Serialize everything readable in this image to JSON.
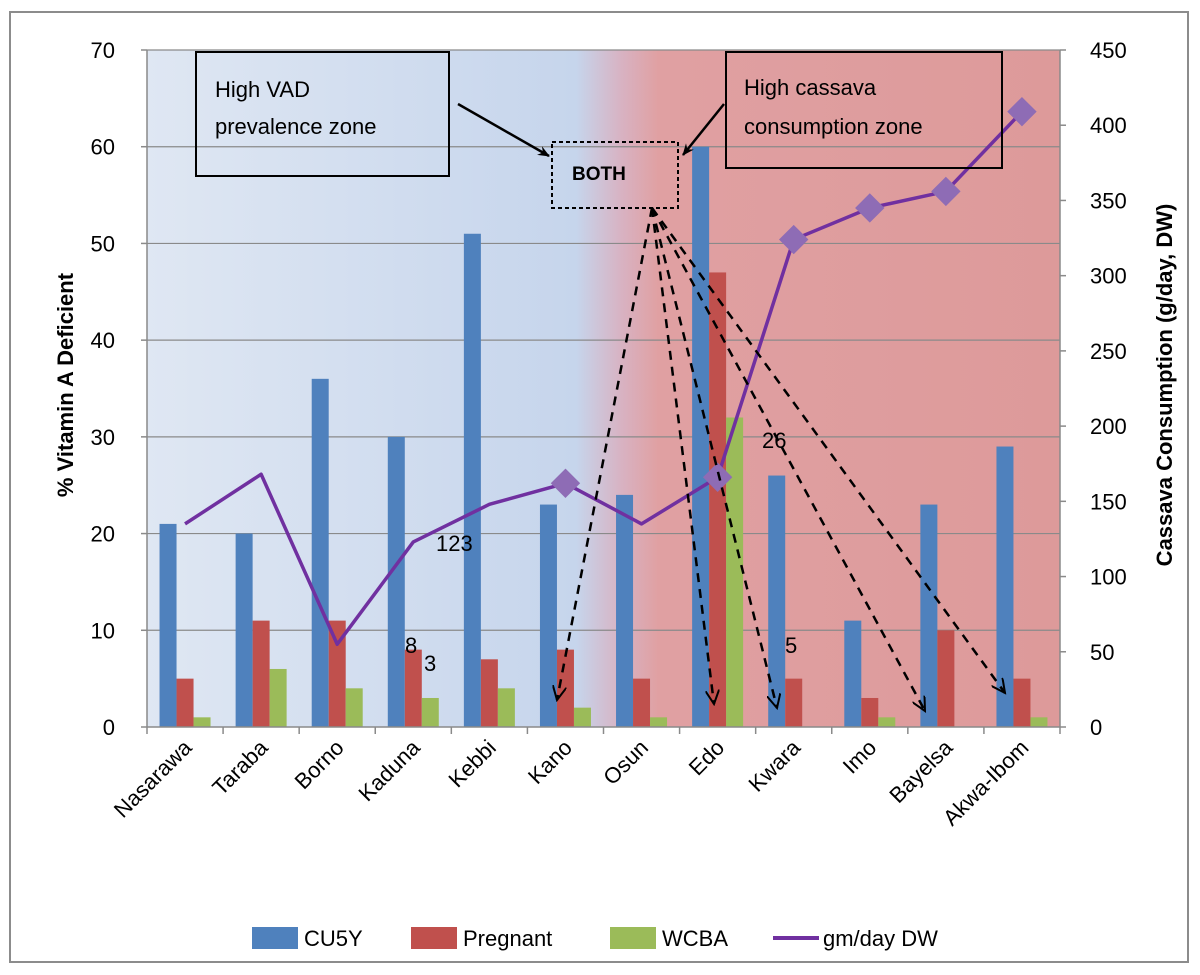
{
  "chart_data": {
    "type": "bar",
    "categories": [
      "Nasarawa",
      "Taraba",
      "Borno",
      "Kaduna",
      "Kebbi",
      "Kano",
      "Osun",
      "Edo",
      "Kwara",
      "Imo",
      "Bayelsa",
      "Akwa-Ibom"
    ],
    "ylabel": "% Vitamin A Deficient",
    "y2label": "Cassava Consumption  (g/day, DW)",
    "ylim": [
      0,
      70
    ],
    "y2lim": [
      0,
      450
    ],
    "yticks": [
      "0",
      "10",
      "20",
      "30",
      "40",
      "50",
      "60",
      "70"
    ],
    "y2ticks": [
      "0",
      "50",
      "100",
      "150",
      "200",
      "250",
      "300",
      "350",
      "400",
      "450"
    ],
    "grid": true,
    "legend_position": "bottom",
    "series": [
      {
        "name": "CU5Y",
        "type": "bar",
        "axis": "left",
        "color": "#4f81bd",
        "values": [
          21,
          20,
          36,
          30,
          51,
          23,
          24,
          60,
          26,
          11,
          23,
          29
        ]
      },
      {
        "name": "Pregnant",
        "type": "bar",
        "axis": "left",
        "color": "#c0504d",
        "values": [
          5,
          11,
          11,
          8,
          7,
          8,
          5,
          47,
          5,
          3,
          10,
          5
        ]
      },
      {
        "name": "WCBA",
        "type": "bar",
        "axis": "left",
        "color": "#9bbb59",
        "values": [
          1,
          6,
          4,
          3,
          4,
          2,
          1,
          32,
          null,
          1,
          null,
          1
        ]
      },
      {
        "name": "gm/day DW",
        "type": "line",
        "axis": "right",
        "color": "#7030a0",
        "values": [
          135,
          168,
          55,
          123,
          148,
          162,
          135,
          166,
          324,
          345,
          356,
          409
        ],
        "markers": [
          false,
          false,
          false,
          false,
          false,
          true,
          false,
          true,
          true,
          true,
          true,
          true
        ]
      }
    ],
    "data_labels": [
      "123",
      "8",
      "3",
      "26",
      "5"
    ],
    "annotations": {
      "vad_zone": [
        "High VAD",
        "prevalence  zone"
      ],
      "cassava_zone": [
        "High cassava",
        "consumption zone"
      ],
      "both": "BOTH"
    }
  }
}
